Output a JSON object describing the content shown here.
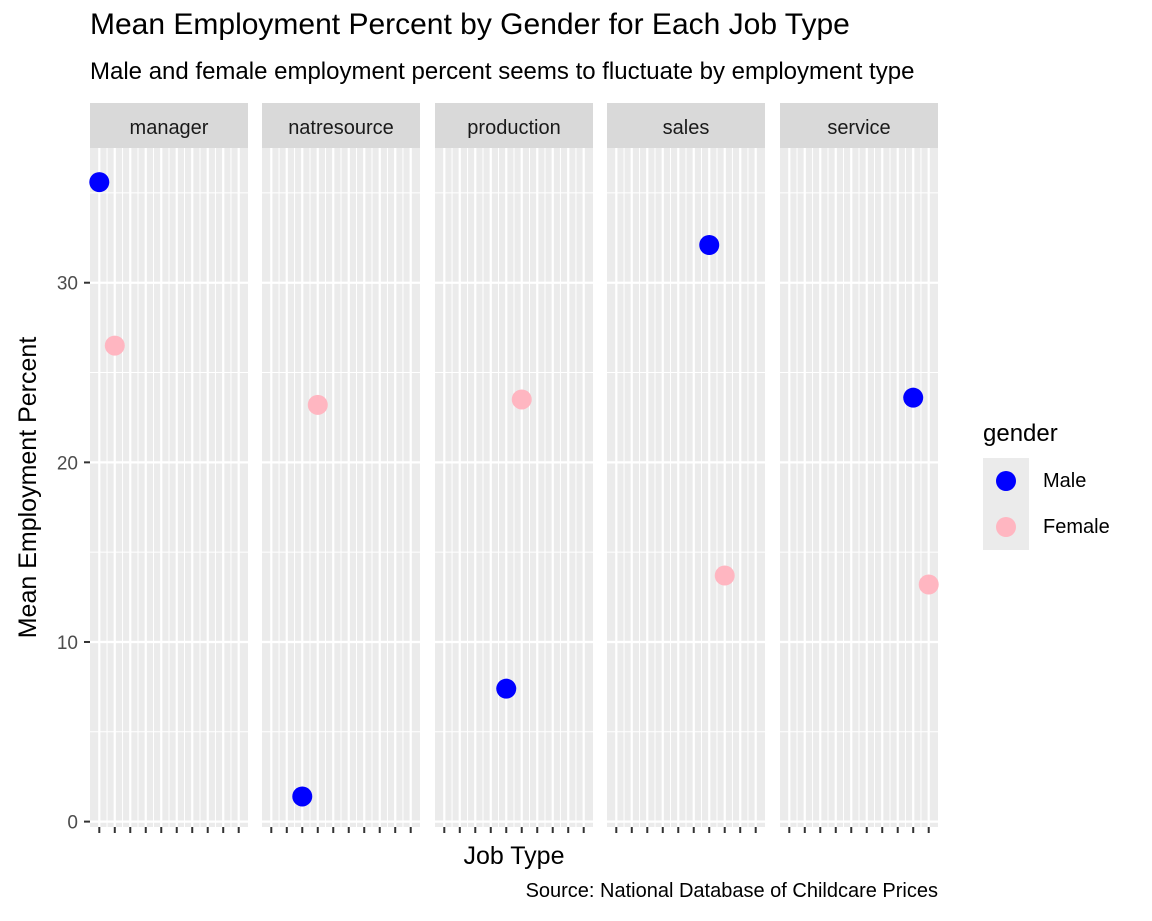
{
  "chart_data": {
    "type": "scatter",
    "title": "Mean Employment Percent by Gender for Each Job Type",
    "subtitle": "Male and female employment percent seems to fluctuate by employment type",
    "caption": "Source: National Database of Childcare Prices",
    "xlabel": "Job Type",
    "ylabel": "Mean Employment Percent",
    "ylim": [
      -0.3,
      37.5
    ],
    "yticks": [
      0,
      10,
      20,
      30
    ],
    "grid": true,
    "facets": [
      "manager",
      "natresource",
      "production",
      "sales",
      "service"
    ],
    "x_positions_per_panel": 10,
    "series": [
      {
        "name": "Male",
        "color": "#0000ff",
        "points": [
          {
            "facet": "manager",
            "x": 1,
            "y": 35.6
          },
          {
            "facet": "natresource",
            "x": 3,
            "y": 1.4
          },
          {
            "facet": "production",
            "x": 5,
            "y": 7.4
          },
          {
            "facet": "sales",
            "x": 7,
            "y": 32.1
          },
          {
            "facet": "service",
            "x": 9,
            "y": 23.6
          }
        ]
      },
      {
        "name": "Female",
        "color": "#ffb6c1",
        "points": [
          {
            "facet": "manager",
            "x": 2,
            "y": 26.5
          },
          {
            "facet": "natresource",
            "x": 4,
            "y": 23.2
          },
          {
            "facet": "production",
            "x": 6,
            "y": 23.5
          },
          {
            "facet": "sales",
            "x": 8,
            "y": 13.7
          },
          {
            "facet": "service",
            "x": 10,
            "y": 13.2
          }
        ]
      }
    ],
    "legend": {
      "title": "gender",
      "position": "right",
      "entries": [
        {
          "label": "Male",
          "color": "#0000ff"
        },
        {
          "label": "Female",
          "color": "#ffb6c1"
        }
      ]
    }
  }
}
